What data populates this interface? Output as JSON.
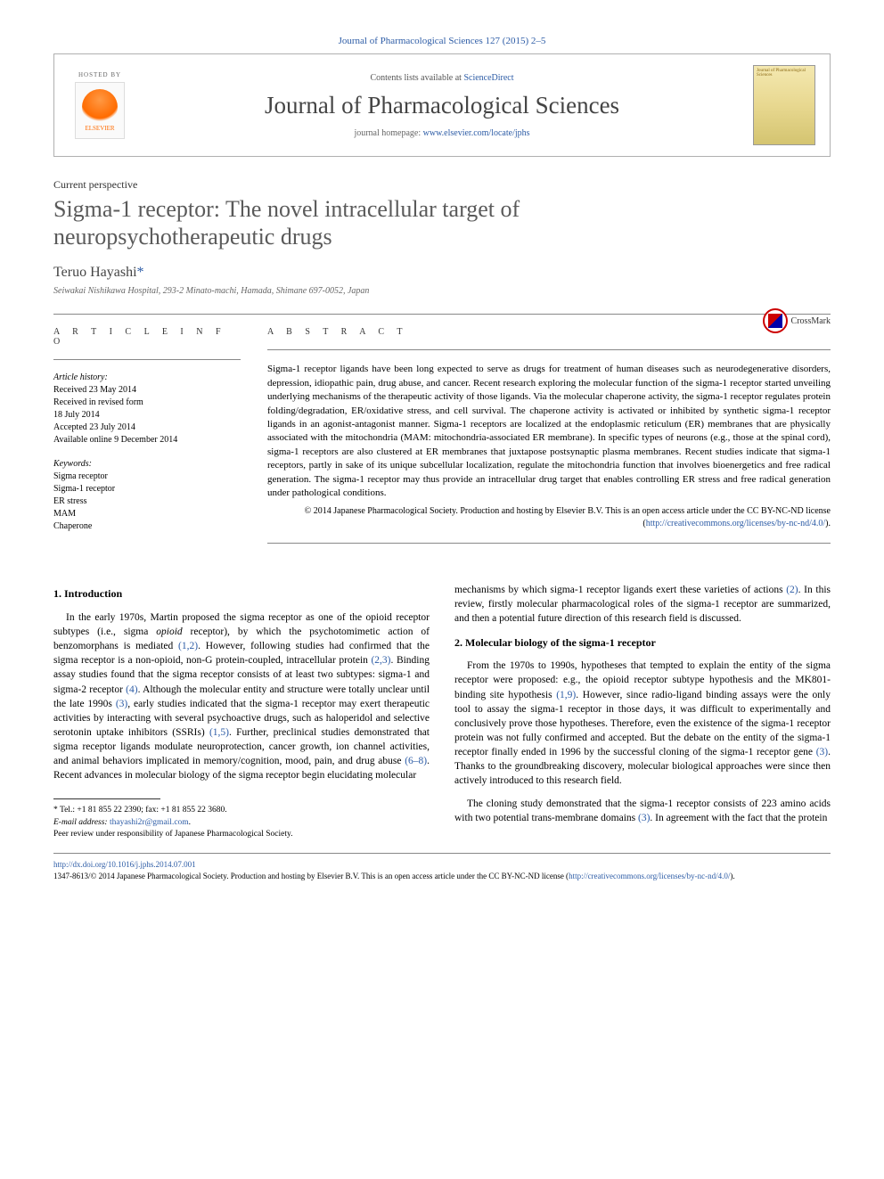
{
  "journal_ref": "Journal of Pharmacological Sciences 127 (2015) 2–5",
  "header": {
    "hosted_by": "HOSTED BY",
    "elsevier": "ELSEVIER",
    "contents_prefix": "Contents lists available at ",
    "contents_link": "ScienceDirect",
    "journal_name": "Journal of Pharmacological Sciences",
    "homepage_prefix": "journal homepage: ",
    "homepage_url": "www.elsevier.com/locate/jphs",
    "cover_text": "Journal of Pharmacological Sciences"
  },
  "article_type": "Current perspective",
  "title": "Sigma-1 receptor: The novel intracellular target of neuropsychotherapeutic drugs",
  "crossmark": "CrossMark",
  "author": "Teruo Hayashi",
  "affiliation": "Seiwakai Nishikawa Hospital, 293-2 Minato-machi, Hamada, Shimane 697-0052, Japan",
  "info": {
    "heading": "A R T I C L E  I N F O",
    "history_label": "Article history:",
    "history": [
      "Received 23 May 2014",
      "Received in revised form",
      "18 July 2014",
      "Accepted 23 July 2014",
      "Available online 9 December 2014"
    ],
    "keywords_label": "Keywords:",
    "keywords": [
      "Sigma receptor",
      "Sigma-1 receptor",
      "ER stress",
      "MAM",
      "Chaperone"
    ]
  },
  "abstract": {
    "heading": "A B S T R A C T",
    "text": "Sigma-1 receptor ligands have been long expected to serve as drugs for treatment of human diseases such as neurodegenerative disorders, depression, idiopathic pain, drug abuse, and cancer. Recent research exploring the molecular function of the sigma-1 receptor started unveiling underlying mechanisms of the therapeutic activity of those ligands. Via the molecular chaperone activity, the sigma-1 receptor regulates protein folding/degradation, ER/oxidative stress, and cell survival. The chaperone activity is activated or inhibited by synthetic sigma-1 receptor ligands in an agonist-antagonist manner. Sigma-1 receptors are localized at the endoplasmic reticulum (ER) membranes that are physically associated with the mitochondria (MAM: mitochondria-associated ER membrane). In specific types of neurons (e.g., those at the spinal cord), sigma-1 receptors are also clustered at ER membranes that juxtapose postsynaptic plasma membranes. Recent studies indicate that sigma-1 receptors, partly in sake of its unique subcellular localization, regulate the mitochondria function that involves bioenergetics and free radical generation. The sigma-1 receptor may thus provide an intracellular drug target that enables controlling ER stress and free radical generation under pathological conditions.",
    "copyright": "© 2014 Japanese Pharmacological Society. Production and hosting by Elsevier B.V. This is an open access article under the CC BY-NC-ND license (",
    "license_url": "http://creativecommons.org/licenses/by-nc-nd/4.0/",
    "copyright_close": ")."
  },
  "sections": {
    "s1_heading": "1.  Introduction",
    "s1_p1a": "In the early 1970s, Martin proposed the sigma receptor as one of the opioid receptor subtypes (i.e., sigma ",
    "s1_p1_opioid": "opioid",
    "s1_p1b": " receptor), by which the psychotomimetic action of benzomorphans is mediated ",
    "s1_p1_ref1": "(1,2)",
    "s1_p1c": ". However, following studies had confirmed that the sigma receptor is a non-opioid, non-G protein-coupled, intracellular protein ",
    "s1_p1_ref2": "(2,3)",
    "s1_p1d": ". Binding assay studies found that the sigma receptor consists of at least two subtypes: sigma-1 and sigma-2 receptor ",
    "s1_p1_ref3": "(4)",
    "s1_p1e": ". Although the molecular entity and structure were totally unclear until the late 1990s ",
    "s1_p1_ref4": "(3)",
    "s1_p1f": ", early studies indicated that the sigma-1 receptor may exert therapeutic activities by interacting with several psychoactive drugs, such as haloperidol and selective serotonin uptake inhibitors (SSRIs) ",
    "s1_p1_ref5": "(1,5)",
    "s1_p1g": ". Further, preclinical studies demonstrated that sigma receptor ligands modulate neuroprotection, cancer growth, ion channel activities, and animal behaviors implicated in memory/cognition, mood, pain, and drug abuse ",
    "s1_p1_ref6": "(6–8)",
    "s1_p1h": ". Recent advances in molecular biology of the sigma receptor begin elucidating molecular",
    "s1_cont_a": "mechanisms by which sigma-1 receptor ligands exert these varieties of actions ",
    "s1_cont_ref": "(2)",
    "s1_cont_b": ". In this review, firstly molecular pharmacological roles of the sigma-1 receptor are summarized, and then a potential future direction of this research field is discussed.",
    "s2_heading": "2.  Molecular biology of the sigma-1 receptor",
    "s2_p1a": "From the 1970s to 1990s, hypotheses that tempted to explain the entity of the sigma receptor were proposed: e.g., the opioid receptor subtype hypothesis and the MK801-binding site hypothesis ",
    "s2_p1_ref1": "(1,9)",
    "s2_p1b": ". However, since radio-ligand binding assays were the only tool to assay the sigma-1 receptor in those days, it was difficult to experimentally and conclusively prove those hypotheses. Therefore, even the existence of the sigma-1 receptor protein was not fully confirmed and accepted. But the debate on the entity of the sigma-1 receptor finally ended in 1996 by the successful cloning of the sigma-1 receptor gene ",
    "s2_p1_ref2": "(3)",
    "s2_p1c": ". Thanks to the groundbreaking discovery, molecular biological approaches were since then actively introduced to this research field.",
    "s2_p2a": "The cloning study demonstrated that the sigma-1 receptor consists of 223 amino acids with two potential trans-membrane domains ",
    "s2_p2_ref": "(3)",
    "s2_p2b": ". In agreement with the fact that the protein"
  },
  "footnotes": {
    "tel": "* Tel.: +1 81 855 22 2390; fax: +1 81 855 22 3680.",
    "email_label": "E-mail address: ",
    "email": "thayashi2r@gmail.com",
    "email_suffix": ".",
    "peer": "Peer review under responsibility of Japanese Pharmacological Society."
  },
  "footer": {
    "doi": "http://dx.doi.org/10.1016/j.jphs.2014.07.001",
    "issn_line_a": "1347-8613/© 2014 Japanese Pharmacological Society. Production and hosting by Elsevier B.V. This is an open access article under the CC BY-NC-ND license (",
    "issn_url": "http://creativecommons.org/licenses/by-nc-nd/4.0/",
    "issn_line_b": ")."
  },
  "colors": {
    "link": "#2d5ca6",
    "title": "#5a5a5a",
    "text": "#000000",
    "rule": "#888888"
  }
}
